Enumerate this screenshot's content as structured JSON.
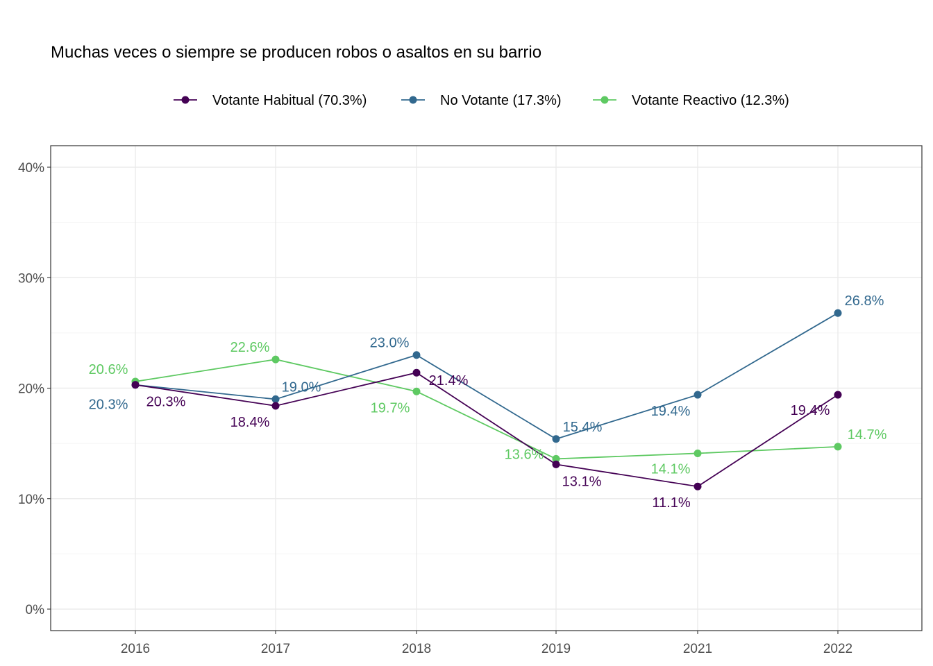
{
  "chart_data": {
    "type": "line",
    "title": "Muchas veces o siempre se producen robos o asaltos en su barrio",
    "xlabel": "",
    "ylabel": "",
    "categories": [
      "2016",
      "2017",
      "2018",
      "2019",
      "2021",
      "2022"
    ],
    "ylim": [
      0,
      40
    ],
    "yticks": [
      0,
      10,
      20,
      30,
      40
    ],
    "ytick_labels": [
      "0%",
      "10%",
      "20%",
      "30%",
      "40%"
    ],
    "grid": true,
    "legend_position": "top",
    "series": [
      {
        "name": "Votante Habitual (70.3%)",
        "color": "#440154",
        "values": [
          20.3,
          18.4,
          21.4,
          13.1,
          11.1,
          19.4
        ],
        "labels": [
          "20.3%",
          "18.4%",
          "21.4%",
          "13.1%",
          "11.1%",
          "19.4%"
        ]
      },
      {
        "name": "No Votante (17.3%)",
        "color": "#31688e",
        "values": [
          20.3,
          19.0,
          23.0,
          15.4,
          19.4,
          26.8
        ],
        "labels": [
          "20.3%",
          "19.0%",
          "23.0%",
          "15.4%",
          "19.4%",
          "26.8%"
        ]
      },
      {
        "name": "Votante Reactivo (12.3%)",
        "color": "#5ec962",
        "values": [
          20.6,
          22.6,
          19.7,
          13.6,
          14.1,
          14.7
        ],
        "labels": [
          "20.6%",
          "22.6%",
          "19.7%",
          "13.6%",
          "14.1%",
          "14.7%"
        ]
      }
    ]
  }
}
